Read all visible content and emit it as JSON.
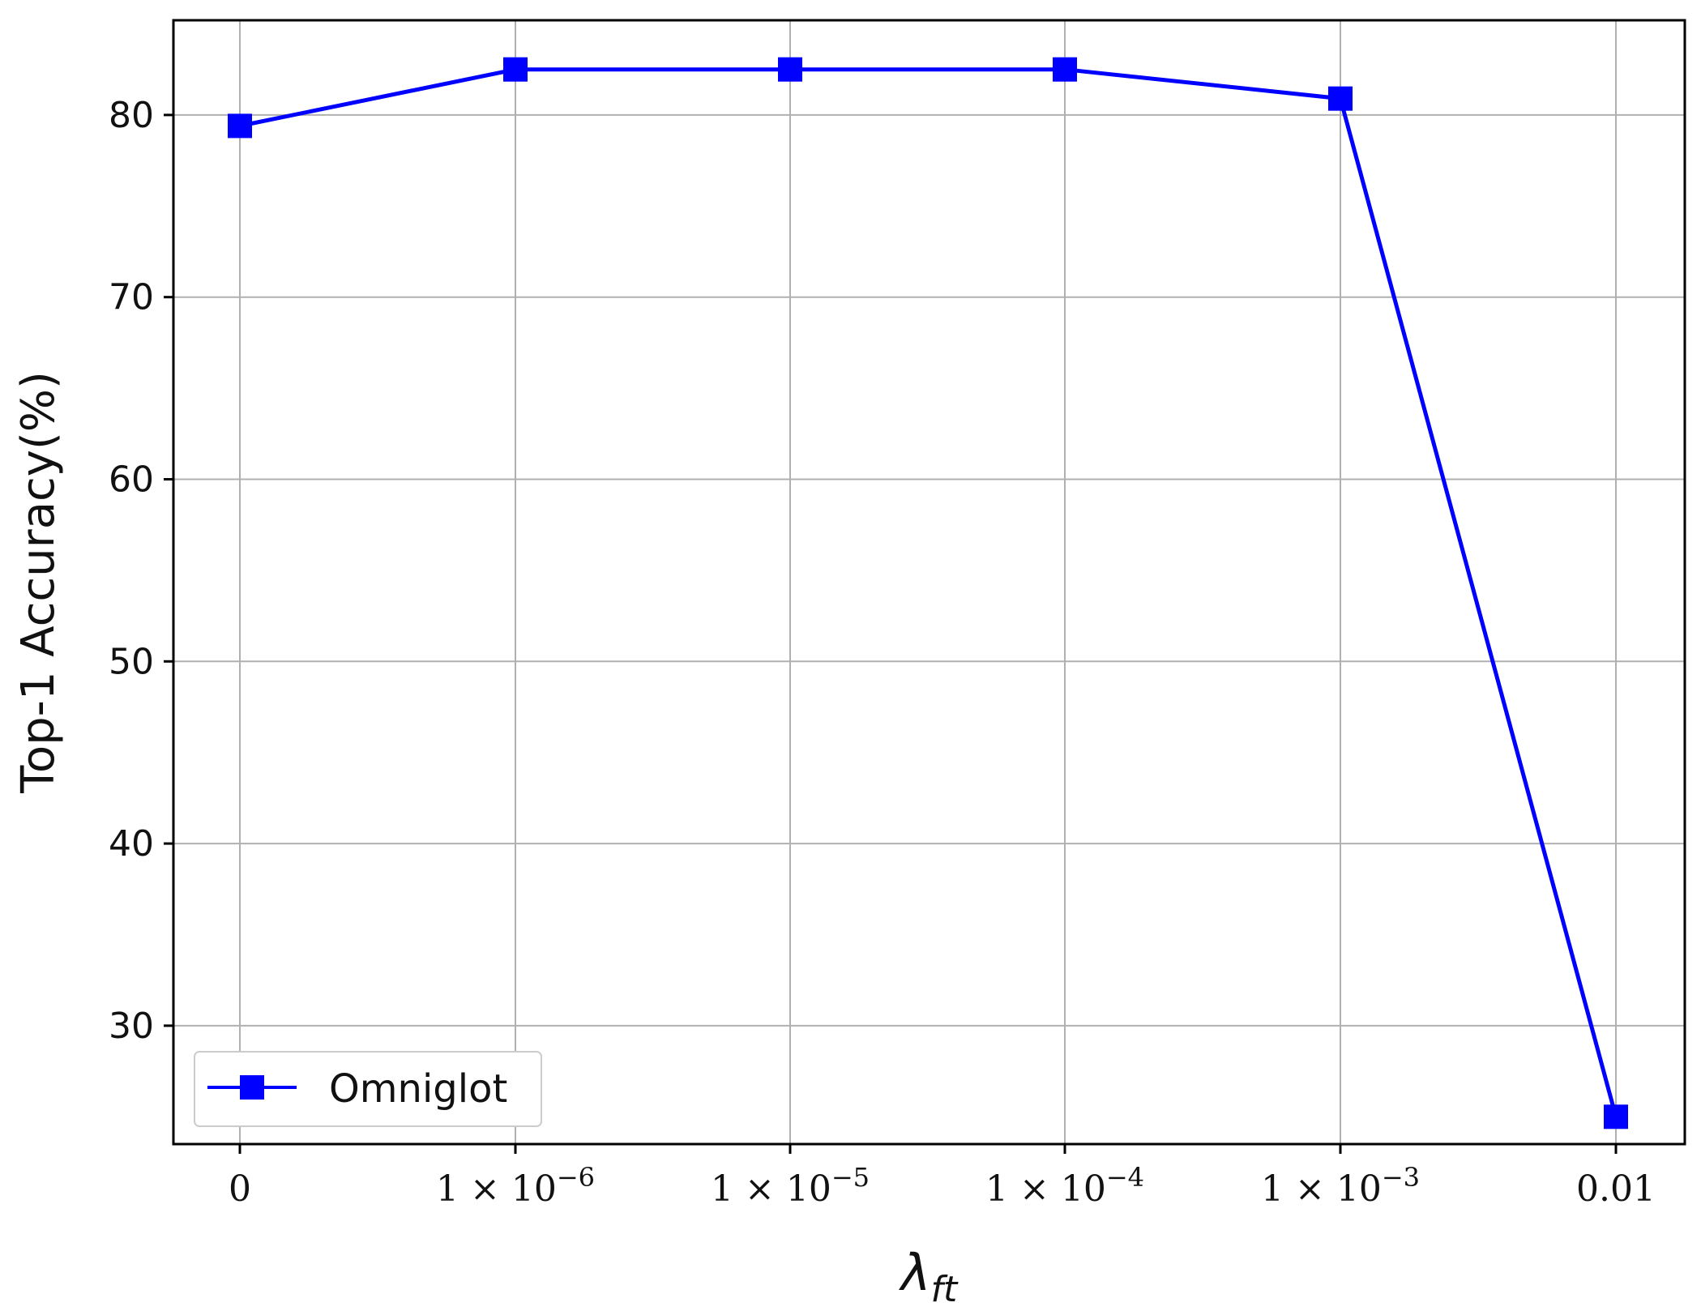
{
  "chart_data": {
    "type": "line",
    "categories": [
      "0",
      "1e-6",
      "1e-5",
      "1e-4",
      "1e-3",
      "0.01"
    ],
    "x_tick_labels": [
      {
        "base": "1 × 10",
        "exp": ""
      },
      {
        "base": "1 × 10",
        "exp": "−6"
      },
      {
        "base": "1 × 10",
        "exp": "−5"
      },
      {
        "base": "1 × 10",
        "exp": "−4"
      },
      {
        "base": "1 × 10",
        "exp": "−3"
      },
      {
        "base": "0.01",
        "exp": ""
      }
    ],
    "x_tick_first": "0",
    "xlabel": "λ",
    "xlabel_sub": "ft",
    "ylabel": "Top-1 Accuracy(%)",
    "ylim": [
      23.5,
      85.2
    ],
    "yticks": [
      30,
      40,
      50,
      60,
      70,
      80
    ],
    "grid": true,
    "legend_position": "lower-left",
    "series": [
      {
        "name": "Omniglot",
        "color": "#0000ff",
        "marker": "square",
        "values": [
          79.4,
          82.5,
          82.5,
          82.5,
          80.9,
          25.0
        ]
      }
    ]
  }
}
